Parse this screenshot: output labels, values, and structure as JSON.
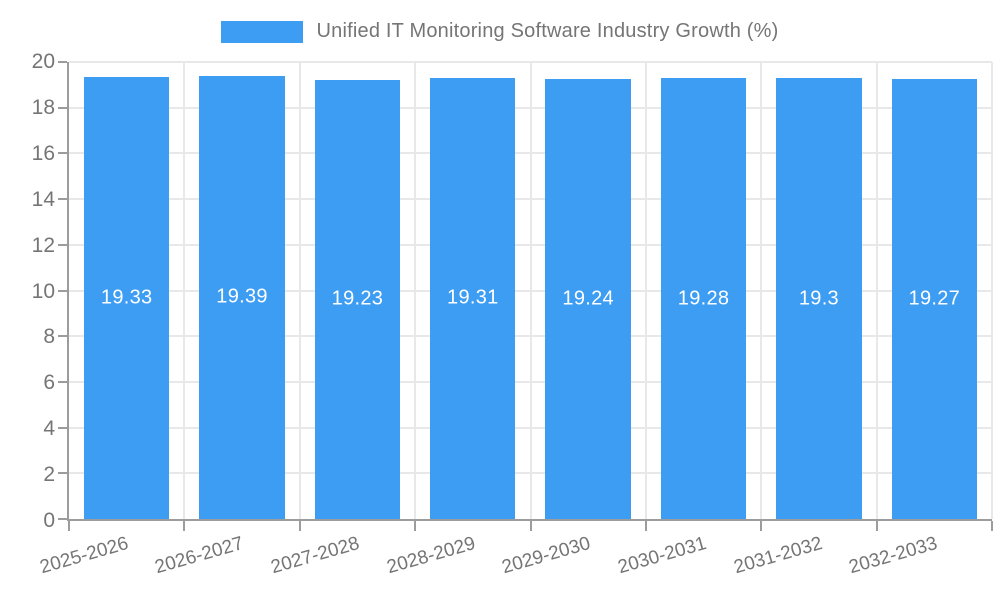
{
  "chart_data": {
    "type": "bar",
    "title": "Unified IT Monitoring Software Industry Growth (%)",
    "categories": [
      "2025-2026",
      "2026-2027",
      "2027-2028",
      "2028-2029",
      "2029-2030",
      "2030-2031",
      "2031-2032",
      "2032-2033"
    ],
    "values": [
      19.33,
      19.39,
      19.23,
      19.31,
      19.24,
      19.28,
      19.3,
      19.27
    ],
    "value_labels": [
      "19.33",
      "19.39",
      "19.23",
      "19.31",
      "19.24",
      "19.28",
      "19.3",
      "19.27"
    ],
    "xlabel": "",
    "ylabel": "",
    "ylim": [
      0,
      20
    ],
    "yticks": [
      0,
      2,
      4,
      6,
      8,
      10,
      12,
      14,
      16,
      18,
      20
    ],
    "grid": true,
    "legend_position": "top-center",
    "colors": {
      "bar": "#3D9DF3",
      "grid": "#E8E8E8",
      "axis": "#9C9C9C",
      "text": "#757575",
      "value_label": "#FFFFFF"
    }
  }
}
